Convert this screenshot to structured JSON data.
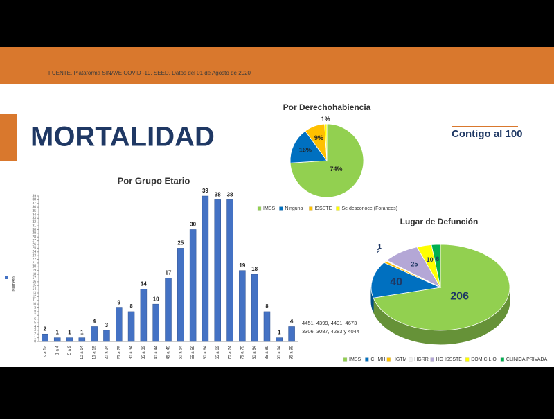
{
  "header": {
    "source": "FUENTE. Plataforma SINAVE COVID -19, SEED. Datos del 01 de Agosto de 2020",
    "title": "MORTALIDAD",
    "logo": "Contigo al 100"
  },
  "chart_data": [
    {
      "type": "bar",
      "title": "Por Grupo Etario",
      "y_label": "Número",
      "legend": [
        "Número"
      ],
      "color": "#4472c4",
      "categories": [
        "< a 1a",
        "1 a 4",
        "5 a 9",
        "10 a 14",
        "15 a 19",
        "20 a 24",
        "25 a 29",
        "30 a 34",
        "35 a 39",
        "40 a 44",
        "45 a 49",
        "50 a 54",
        "55 a 59",
        "60 a 64",
        "65 a 69",
        "70 a 74",
        "75 a 79",
        "80 a 84",
        "85 a 89",
        "90 a 94",
        "95 a 99"
      ],
      "values": [
        2,
        1,
        1,
        1,
        4,
        3,
        9,
        8,
        14,
        10,
        17,
        25,
        30,
        39,
        38,
        38,
        19,
        18,
        8,
        1,
        4
      ],
      "ylim": [
        0,
        39
      ],
      "yticks": [
        0,
        1,
        2,
        3,
        4,
        5,
        6,
        7,
        8,
        9,
        10,
        11,
        12,
        13,
        14,
        15,
        16,
        17,
        18,
        19,
        20,
        21,
        22,
        23,
        24,
        25,
        26,
        27,
        28,
        29,
        30,
        31,
        32,
        33,
        34,
        35,
        36,
        37,
        38,
        39
      ],
      "annotations": [
        "4451, 4399, 4491, 4673",
        "3306, 3087, 4283 y 4044"
      ]
    },
    {
      "type": "pie",
      "title": "Por Derechohabiencia",
      "categories": [
        "IMSS",
        "Ninguna",
        "ISSSTE",
        "Se desconoce (Foráneos)"
      ],
      "values": [
        74,
        16,
        9,
        1
      ],
      "value_labels": [
        "74%",
        "16%",
        "9%",
        "1%"
      ],
      "colors": [
        "#92d050",
        "#0070c0",
        "#ffc000",
        "#ffff00"
      ]
    },
    {
      "type": "pie",
      "title": "Lugar de Defunción",
      "style3d": true,
      "categories": [
        "IMSS",
        "CHMH",
        "HGTM",
        "HGRR",
        "HG ISSSTE",
        "DOMICILIO",
        "CLINICA PRIVADA"
      ],
      "values": [
        206,
        40,
        2,
        1,
        25,
        10,
        6
      ],
      "colors": [
        "#92d050",
        "#0070c0",
        "#ffc000",
        "#f2f2f2",
        "#b4a7d6",
        "#ffff00",
        "#00b050"
      ]
    }
  ]
}
